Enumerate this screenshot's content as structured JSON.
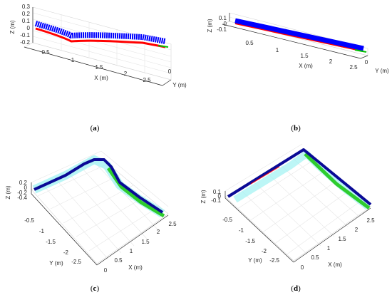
{
  "chart_data": [
    {
      "type": "line",
      "panel_label": "(a)",
      "xlabel": "X (m)",
      "ylabel": "Y (m)",
      "zlabel": "Z (m)",
      "x_ticks": [
        "0.5",
        "1",
        "1.5",
        "2",
        "2.5"
      ],
      "y_ticks": [
        "0"
      ],
      "z_ticks": [
        "0.3",
        "0.2",
        "0.1",
        "0",
        "-0.1",
        "-0.2"
      ],
      "xlim": [
        0,
        2.9
      ],
      "zlim": [
        -0.2,
        0.3
      ],
      "series": [
        {
          "color": "#0000ff",
          "x": [
            0.0,
            0.3,
            0.6,
            0.9,
            1.2,
            1.5,
            1.8,
            2.1,
            2.4,
            2.7,
            2.9
          ],
          "y": [
            0,
            0,
            0,
            0,
            0,
            0,
            0,
            0,
            0,
            0,
            0
          ],
          "z": [
            0.08,
            0.04,
            0.0,
            -0.04,
            -0.02,
            -0.03,
            -0.02,
            -0.05,
            -0.06,
            -0.1,
            -0.12
          ]
        },
        {
          "color": "#ff0000",
          "x": [
            0.0,
            0.3,
            0.6,
            0.9,
            1.2,
            1.5,
            1.8,
            2.1,
            2.4,
            2.7,
            2.9
          ],
          "y": [
            0,
            0,
            0,
            0,
            0,
            0,
            0,
            0,
            0,
            0,
            0
          ],
          "z": [
            0.03,
            -0.02,
            -0.06,
            -0.1,
            -0.09,
            -0.1,
            -0.1,
            -0.12,
            -0.12,
            -0.15,
            -0.17
          ]
        },
        {
          "color": "#00c000",
          "x": [
            2.6,
            2.9
          ],
          "y": [
            0,
            0
          ],
          "z": [
            -0.13,
            -0.15
          ]
        }
      ]
    },
    {
      "type": "line",
      "panel_label": "(b)",
      "xlabel": "X (m)",
      "ylabel": "Y (m)",
      "zlabel": "Z (m)",
      "x_ticks": [
        "0.5",
        "1",
        "1.5",
        "2",
        "2.5"
      ],
      "y_ticks": [
        "0"
      ],
      "z_ticks": [
        "0.1",
        "0",
        "-0.1"
      ],
      "xlim": [
        0,
        2.9
      ],
      "zlim": [
        -0.1,
        0.1
      ],
      "series": [
        {
          "color": "#0000ff",
          "x": [
            0.0,
            2.9
          ],
          "y": [
            0,
            0
          ],
          "z": [
            0.02,
            0.02
          ]
        },
        {
          "color": "#ff0000",
          "x": [
            0.0,
            2.9
          ],
          "y": [
            0,
            0
          ],
          "z": [
            -0.03,
            -0.03
          ]
        },
        {
          "color": "#00c000",
          "x": [
            2.6,
            2.9
          ],
          "y": [
            0,
            0
          ],
          "z": [
            -0.02,
            -0.02
          ]
        }
      ]
    },
    {
      "type": "line",
      "panel_label": "(c)",
      "xlabel": "X (m)",
      "ylabel": "Y (m)",
      "zlabel": "Z (m)",
      "x_ticks": [
        "0",
        "0.5",
        "1",
        "1.5",
        "2",
        "2.5"
      ],
      "y_ticks": [
        "-0.5",
        "-1",
        "-1.5",
        "-2",
        "-2.5"
      ],
      "z_ticks": [
        "0.2",
        "0",
        "-0.2",
        "-0.4"
      ],
      "xlim": [
        0,
        2.9
      ],
      "ylim": [
        -2.9,
        0
      ],
      "series": [
        {
          "color": "#0a0a96",
          "x": [
            0.0,
            0.5,
            0.9,
            1.3,
            1.8,
            2.2,
            2.4,
            2.5,
            2.4,
            2.2,
            1.8,
            1.3,
            0.8,
            0.3
          ],
          "y": [
            0.0,
            0.0,
            0.0,
            0.0,
            0.0,
            0.0,
            -0.1,
            -0.4,
            -0.8,
            -1.2,
            -1.7,
            -2.2,
            -2.5,
            -2.7
          ],
          "z": [
            -0.1,
            -0.05,
            0.0,
            0.02,
            0.05,
            0.08,
            0.1,
            0.05,
            0.0,
            -0.05,
            -0.1,
            -0.15,
            -0.2,
            -0.25
          ]
        },
        {
          "color": "#2ecc2e",
          "x": [
            2.2,
            1.8,
            1.3,
            0.8,
            0.3
          ],
          "y": [
            -1.2,
            -1.7,
            -2.2,
            -2.5,
            -2.7
          ],
          "z": [
            -0.08,
            -0.13,
            -0.18,
            -0.23,
            -0.28
          ]
        }
      ]
    },
    {
      "type": "line",
      "panel_label": "(d)",
      "xlabel": "X (m)",
      "ylabel": "Y (m)",
      "zlabel": "Z (m)",
      "x_ticks": [
        "0",
        "0.5",
        "1",
        "1.5",
        "2",
        "2.5"
      ],
      "y_ticks": [
        "-0.5",
        "-1",
        "-1.5",
        "-2",
        "-2.5"
      ],
      "z_ticks": [
        "0.1",
        "0",
        "-0.1"
      ],
      "xlim": [
        0,
        2.9
      ],
      "ylim": [
        -2.9,
        0
      ],
      "series": [
        {
          "color": "#0a0a96",
          "x": [
            0.0,
            2.5,
            2.5,
            0.3
          ],
          "y": [
            0.0,
            0.0,
            0.0,
            -2.7
          ],
          "z": [
            0.0,
            0.0,
            0.0,
            0.0
          ]
        },
        {
          "color": "#2ecc2e",
          "x": [
            2.5,
            0.3
          ],
          "y": [
            -0.05,
            -2.75
          ],
          "z": [
            -0.02,
            -0.02
          ]
        },
        {
          "color": "#ff0000",
          "x": [
            0.5,
            1.8
          ],
          "y": [
            0.0,
            0.0
          ],
          "z": [
            0.0,
            0.0
          ]
        }
      ]
    }
  ],
  "captions": [
    {
      "open": "(",
      "label": "a",
      "close": ")"
    },
    {
      "open": "(",
      "label": "b",
      "close": ")"
    },
    {
      "open": "(",
      "label": "c",
      "close": ")"
    },
    {
      "open": "(",
      "label": "d",
      "close": ")"
    }
  ]
}
